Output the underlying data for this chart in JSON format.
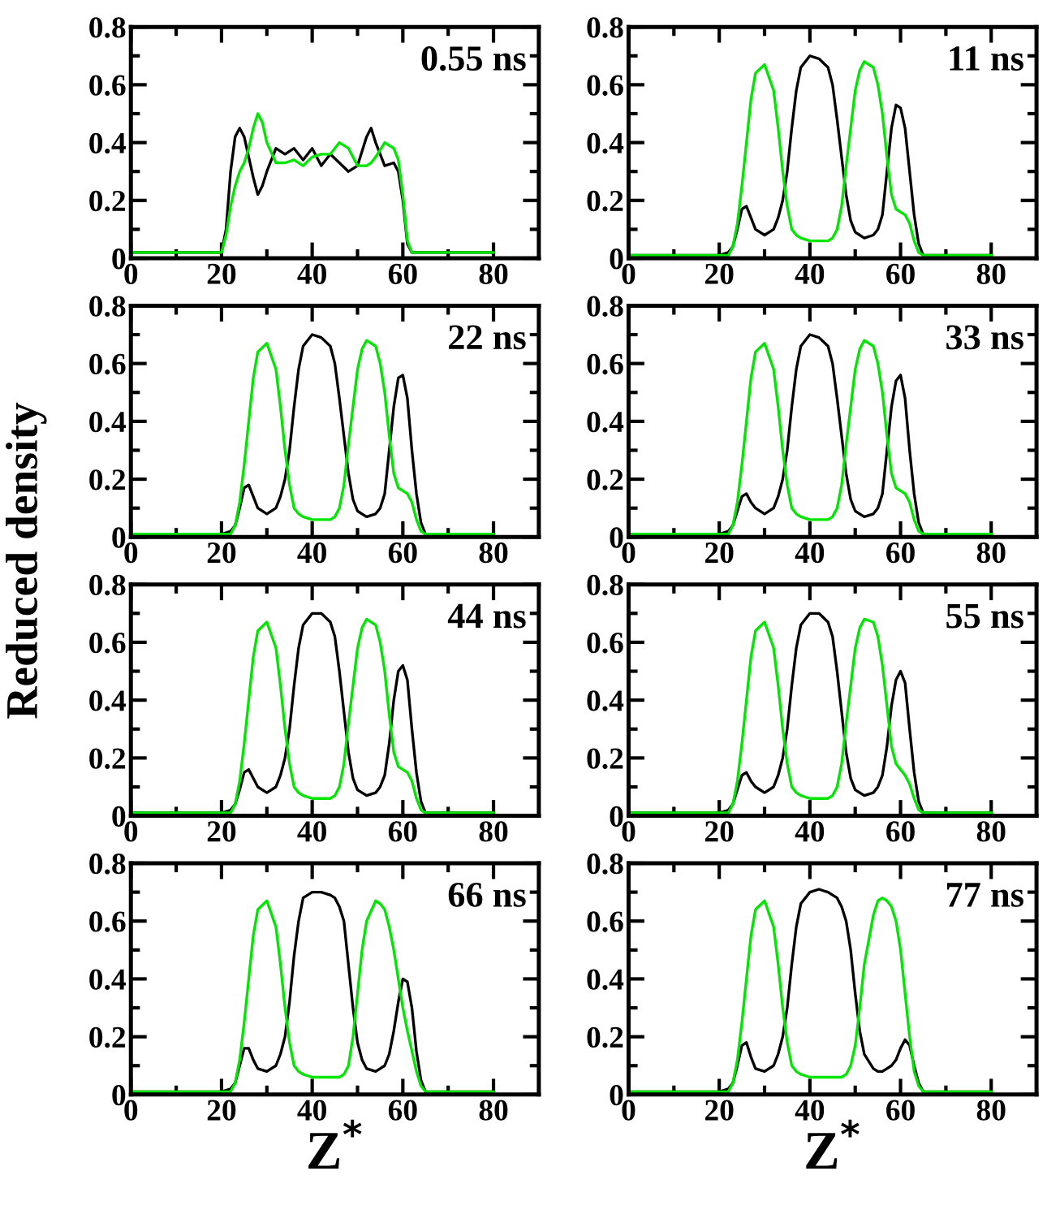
{
  "chart_data": [
    {
      "type": "line",
      "annotations": [
        "0.55 ns"
      ],
      "xlim": [
        0,
        90
      ],
      "xticks": [
        0,
        {
          "value": 10,
          "label": null
        },
        20,
        {
          "value": 30,
          "label": null
        },
        40,
        {
          "value": 50,
          "label": null
        },
        60,
        {
          "value": 70,
          "label": null
        },
        80
      ],
      "ylim": [
        0,
        0.8
      ],
      "yticks": [
        0,
        {
          "value": 0.1,
          "label": null
        },
        0.2,
        {
          "value": 0.3,
          "label": null
        },
        0.4,
        {
          "value": 0.5,
          "label": null
        },
        0.6,
        {
          "value": 0.7,
          "label": null
        },
        0.8
      ],
      "grid": false,
      "x": [
        0,
        10,
        20,
        21,
        22,
        23,
        24,
        25,
        26,
        27,
        28,
        29,
        30,
        32,
        34,
        36,
        38,
        40,
        42,
        44,
        46,
        48,
        50,
        52,
        53,
        54,
        56,
        58,
        59,
        60,
        61,
        62,
        70,
        80
      ],
      "series": [
        {
          "color": "#000000",
          "values": [
            0.02,
            0.02,
            0.02,
            0.1,
            0.3,
            0.42,
            0.45,
            0.42,
            0.35,
            0.28,
            0.22,
            0.25,
            0.3,
            0.38,
            0.36,
            0.38,
            0.34,
            0.38,
            0.32,
            0.36,
            0.33,
            0.3,
            0.32,
            0.42,
            0.45,
            0.4,
            0.32,
            0.33,
            0.3,
            0.2,
            0.05,
            0.02,
            0.02,
            0.02
          ]
        },
        {
          "color": "#00e600",
          "values": [
            0.02,
            0.02,
            0.02,
            0.08,
            0.18,
            0.25,
            0.3,
            0.33,
            0.38,
            0.45,
            0.5,
            0.47,
            0.4,
            0.33,
            0.33,
            0.34,
            0.32,
            0.35,
            0.36,
            0.36,
            0.4,
            0.38,
            0.32,
            0.32,
            0.33,
            0.35,
            0.4,
            0.38,
            0.34,
            0.22,
            0.06,
            0.02,
            0.02,
            0.02
          ]
        }
      ]
    },
    {
      "type": "line",
      "annotations": [
        "11 ns"
      ],
      "xlim": [
        0,
        90
      ],
      "xticks": [
        0,
        {
          "value": 10,
          "label": null
        },
        20,
        {
          "value": 30,
          "label": null
        },
        40,
        {
          "value": 50,
          "label": null
        },
        60,
        {
          "value": 70,
          "label": null
        },
        80
      ],
      "ylim": [
        0,
        0.8
      ],
      "yticks": [
        0,
        {
          "value": 0.1,
          "label": null
        },
        0.2,
        {
          "value": 0.3,
          "label": null
        },
        0.4,
        {
          "value": 0.5,
          "label": null
        },
        0.6,
        {
          "value": 0.7,
          "label": null
        },
        0.8
      ],
      "grid": false,
      "x": [
        0,
        10,
        20,
        22,
        23,
        24,
        25,
        26,
        27,
        28,
        30,
        32,
        33,
        34,
        35,
        36,
        37,
        38,
        40,
        42,
        44,
        45,
        46,
        47,
        48,
        49,
        50,
        51,
        52,
        54,
        55,
        56,
        57,
        58,
        59,
        60,
        61,
        62,
        63,
        64,
        65,
        70,
        80
      ],
      "series": [
        {
          "color": "#000000",
          "values": [
            0.01,
            0.01,
            0.01,
            0.02,
            0.04,
            0.1,
            0.17,
            0.18,
            0.14,
            0.1,
            0.08,
            0.1,
            0.14,
            0.2,
            0.3,
            0.45,
            0.58,
            0.66,
            0.7,
            0.69,
            0.66,
            0.6,
            0.48,
            0.35,
            0.22,
            0.13,
            0.09,
            0.08,
            0.07,
            0.08,
            0.1,
            0.15,
            0.3,
            0.45,
            0.53,
            0.52,
            0.45,
            0.3,
            0.15,
            0.05,
            0.01,
            0.01,
            0.01
          ]
        },
        {
          "color": "#00e600",
          "values": [
            0.01,
            0.01,
            0.01,
            0.01,
            0.04,
            0.12,
            0.25,
            0.4,
            0.55,
            0.64,
            0.67,
            0.58,
            0.45,
            0.3,
            0.18,
            0.1,
            0.08,
            0.07,
            0.06,
            0.06,
            0.06,
            0.07,
            0.1,
            0.18,
            0.32,
            0.45,
            0.58,
            0.65,
            0.68,
            0.66,
            0.6,
            0.5,
            0.35,
            0.22,
            0.17,
            0.16,
            0.15,
            0.12,
            0.06,
            0.02,
            0.01,
            0.01,
            0.01
          ]
        }
      ]
    },
    {
      "type": "line",
      "annotations": [
        "22 ns"
      ],
      "ylabel": "Reduced density",
      "xlim": [
        0,
        90
      ],
      "xticks": [
        0,
        {
          "value": 10,
          "label": null
        },
        20,
        {
          "value": 30,
          "label": null
        },
        40,
        {
          "value": 50,
          "label": null
        },
        60,
        {
          "value": 70,
          "label": null
        },
        80
      ],
      "ylim": [
        0,
        0.8
      ],
      "yticks": [
        0,
        {
          "value": 0.1,
          "label": null
        },
        0.2,
        {
          "value": 0.3,
          "label": null
        },
        0.4,
        {
          "value": 0.5,
          "label": null
        },
        0.6,
        {
          "value": 0.7,
          "label": null
        },
        0.8
      ],
      "grid": false,
      "x": [
        0,
        10,
        20,
        22,
        23,
        24,
        25,
        26,
        27,
        28,
        30,
        32,
        33,
        34,
        35,
        36,
        37,
        38,
        40,
        42,
        44,
        45,
        46,
        47,
        48,
        49,
        50,
        51,
        52,
        54,
        55,
        56,
        57,
        58,
        59,
        60,
        61,
        62,
        63,
        64,
        65,
        70,
        80
      ],
      "series": [
        {
          "color": "#000000",
          "values": [
            0.01,
            0.01,
            0.01,
            0.02,
            0.04,
            0.1,
            0.17,
            0.18,
            0.14,
            0.1,
            0.08,
            0.1,
            0.14,
            0.2,
            0.3,
            0.45,
            0.58,
            0.66,
            0.7,
            0.69,
            0.66,
            0.6,
            0.48,
            0.35,
            0.22,
            0.13,
            0.09,
            0.08,
            0.07,
            0.08,
            0.1,
            0.15,
            0.3,
            0.45,
            0.55,
            0.56,
            0.48,
            0.3,
            0.15,
            0.05,
            0.01,
            0.01,
            0.01
          ]
        },
        {
          "color": "#00e600",
          "values": [
            0.01,
            0.01,
            0.01,
            0.01,
            0.04,
            0.12,
            0.25,
            0.4,
            0.55,
            0.64,
            0.67,
            0.58,
            0.45,
            0.3,
            0.18,
            0.1,
            0.08,
            0.07,
            0.06,
            0.06,
            0.06,
            0.07,
            0.1,
            0.18,
            0.32,
            0.45,
            0.58,
            0.65,
            0.68,
            0.66,
            0.6,
            0.5,
            0.35,
            0.22,
            0.17,
            0.16,
            0.15,
            0.12,
            0.06,
            0.02,
            0.01,
            0.01,
            0.01
          ]
        }
      ]
    },
    {
      "type": "line",
      "annotations": [
        "33 ns"
      ],
      "xlim": [
        0,
        90
      ],
      "xticks": [
        0,
        {
          "value": 10,
          "label": null
        },
        20,
        {
          "value": 30,
          "label": null
        },
        40,
        {
          "value": 50,
          "label": null
        },
        60,
        {
          "value": 70,
          "label": null
        },
        80
      ],
      "ylim": [
        0,
        0.8
      ],
      "yticks": [
        0,
        {
          "value": 0.1,
          "label": null
        },
        0.2,
        {
          "value": 0.3,
          "label": null
        },
        0.4,
        {
          "value": 0.5,
          "label": null
        },
        0.6,
        {
          "value": 0.7,
          "label": null
        },
        0.8
      ],
      "grid": false,
      "x": [
        0,
        10,
        20,
        22,
        23,
        24,
        25,
        26,
        27,
        28,
        30,
        32,
        33,
        34,
        35,
        36,
        37,
        38,
        40,
        42,
        44,
        45,
        46,
        47,
        48,
        49,
        50,
        51,
        52,
        54,
        55,
        56,
        57,
        58,
        59,
        60,
        61,
        62,
        63,
        64,
        65,
        70,
        80
      ],
      "series": [
        {
          "color": "#000000",
          "values": [
            0.01,
            0.01,
            0.01,
            0.02,
            0.04,
            0.09,
            0.14,
            0.15,
            0.12,
            0.1,
            0.08,
            0.1,
            0.14,
            0.2,
            0.3,
            0.45,
            0.58,
            0.66,
            0.7,
            0.69,
            0.66,
            0.6,
            0.48,
            0.35,
            0.22,
            0.13,
            0.09,
            0.08,
            0.07,
            0.08,
            0.1,
            0.15,
            0.3,
            0.45,
            0.54,
            0.56,
            0.48,
            0.3,
            0.15,
            0.05,
            0.01,
            0.01,
            0.01
          ]
        },
        {
          "color": "#00e600",
          "values": [
            0.01,
            0.01,
            0.01,
            0.01,
            0.04,
            0.12,
            0.25,
            0.4,
            0.55,
            0.64,
            0.67,
            0.58,
            0.45,
            0.3,
            0.18,
            0.1,
            0.08,
            0.07,
            0.06,
            0.06,
            0.06,
            0.07,
            0.1,
            0.18,
            0.32,
            0.45,
            0.58,
            0.65,
            0.68,
            0.66,
            0.6,
            0.5,
            0.35,
            0.22,
            0.17,
            0.16,
            0.15,
            0.12,
            0.06,
            0.02,
            0.01,
            0.01,
            0.01
          ]
        }
      ]
    },
    {
      "type": "line",
      "annotations": [
        "44 ns"
      ],
      "xlim": [
        0,
        90
      ],
      "xticks": [
        0,
        {
          "value": 10,
          "label": null
        },
        20,
        {
          "value": 30,
          "label": null
        },
        40,
        {
          "value": 50,
          "label": null
        },
        60,
        {
          "value": 70,
          "label": null
        },
        80
      ],
      "ylim": [
        0,
        0.8
      ],
      "yticks": [
        0,
        {
          "value": 0.1,
          "label": null
        },
        0.2,
        {
          "value": 0.3,
          "label": null
        },
        0.4,
        {
          "value": 0.5,
          "label": null
        },
        0.6,
        {
          "value": 0.7,
          "label": null
        },
        0.8
      ],
      "grid": false,
      "x": [
        0,
        10,
        20,
        22,
        23,
        24,
        25,
        26,
        27,
        28,
        30,
        32,
        33,
        34,
        35,
        36,
        37,
        38,
        40,
        42,
        44,
        45,
        46,
        47,
        48,
        49,
        50,
        51,
        52,
        54,
        55,
        56,
        57,
        58,
        59,
        60,
        61,
        62,
        63,
        64,
        65,
        70,
        80
      ],
      "series": [
        {
          "color": "#000000",
          "values": [
            0.01,
            0.01,
            0.01,
            0.02,
            0.04,
            0.09,
            0.15,
            0.16,
            0.13,
            0.1,
            0.08,
            0.1,
            0.14,
            0.2,
            0.3,
            0.45,
            0.58,
            0.66,
            0.7,
            0.7,
            0.67,
            0.62,
            0.5,
            0.36,
            0.22,
            0.13,
            0.09,
            0.08,
            0.07,
            0.08,
            0.1,
            0.14,
            0.25,
            0.4,
            0.5,
            0.52,
            0.47,
            0.3,
            0.15,
            0.05,
            0.01,
            0.01,
            0.01
          ]
        },
        {
          "color": "#00e600",
          "values": [
            0.01,
            0.01,
            0.01,
            0.01,
            0.04,
            0.12,
            0.25,
            0.4,
            0.55,
            0.64,
            0.67,
            0.58,
            0.45,
            0.3,
            0.18,
            0.1,
            0.08,
            0.07,
            0.06,
            0.06,
            0.06,
            0.07,
            0.1,
            0.18,
            0.32,
            0.45,
            0.58,
            0.65,
            0.68,
            0.66,
            0.6,
            0.5,
            0.35,
            0.22,
            0.17,
            0.16,
            0.15,
            0.12,
            0.06,
            0.02,
            0.01,
            0.01,
            0.01
          ]
        }
      ]
    },
    {
      "type": "line",
      "annotations": [
        "55 ns"
      ],
      "xlim": [
        0,
        90
      ],
      "xticks": [
        0,
        {
          "value": 10,
          "label": null
        },
        20,
        {
          "value": 30,
          "label": null
        },
        40,
        {
          "value": 50,
          "label": null
        },
        60,
        {
          "value": 70,
          "label": null
        },
        80
      ],
      "ylim": [
        0,
        0.8
      ],
      "yticks": [
        0,
        {
          "value": 0.1,
          "label": null
        },
        0.2,
        {
          "value": 0.3,
          "label": null
        },
        0.4,
        {
          "value": 0.5,
          "label": null
        },
        0.6,
        {
          "value": 0.7,
          "label": null
        },
        0.8
      ],
      "grid": false,
      "x": [
        0,
        10,
        20,
        22,
        23,
        24,
        25,
        26,
        27,
        28,
        30,
        32,
        33,
        34,
        35,
        36,
        37,
        38,
        40,
        42,
        44,
        45,
        46,
        47,
        48,
        49,
        50,
        51,
        52,
        54,
        55,
        56,
        57,
        58,
        59,
        60,
        61,
        62,
        63,
        64,
        65,
        70,
        80
      ],
      "series": [
        {
          "color": "#000000",
          "values": [
            0.01,
            0.01,
            0.01,
            0.02,
            0.04,
            0.09,
            0.14,
            0.15,
            0.12,
            0.1,
            0.08,
            0.1,
            0.14,
            0.2,
            0.3,
            0.45,
            0.58,
            0.66,
            0.7,
            0.7,
            0.67,
            0.62,
            0.5,
            0.36,
            0.22,
            0.13,
            0.09,
            0.08,
            0.07,
            0.08,
            0.1,
            0.14,
            0.24,
            0.38,
            0.47,
            0.5,
            0.46,
            0.3,
            0.15,
            0.05,
            0.01,
            0.01,
            0.01
          ]
        },
        {
          "color": "#00e600",
          "values": [
            0.01,
            0.01,
            0.01,
            0.01,
            0.04,
            0.12,
            0.25,
            0.4,
            0.55,
            0.64,
            0.67,
            0.58,
            0.45,
            0.3,
            0.18,
            0.1,
            0.08,
            0.07,
            0.06,
            0.06,
            0.06,
            0.07,
            0.1,
            0.18,
            0.32,
            0.45,
            0.58,
            0.65,
            0.68,
            0.67,
            0.62,
            0.52,
            0.38,
            0.24,
            0.18,
            0.16,
            0.14,
            0.11,
            0.06,
            0.02,
            0.01,
            0.01,
            0.01
          ]
        }
      ]
    },
    {
      "type": "line",
      "annotations": [
        "66 ns"
      ],
      "xlabel": "Z$^{*}$",
      "xlim": [
        0,
        90
      ],
      "xticks": [
        0,
        {
          "value": 10,
          "label": null
        },
        20,
        {
          "value": 30,
          "label": null
        },
        40,
        {
          "value": 50,
          "label": null
        },
        60,
        {
          "value": 70,
          "label": null
        },
        80
      ],
      "ylim": [
        0,
        0.8
      ],
      "yticks": [
        0,
        {
          "value": 0.1,
          "label": null
        },
        0.2,
        {
          "value": 0.3,
          "label": null
        },
        0.4,
        {
          "value": 0.5,
          "label": null
        },
        0.6,
        {
          "value": 0.7,
          "label": null
        },
        0.8
      ],
      "grid": false,
      "x": [
        0,
        10,
        20,
        22,
        23,
        24,
        25,
        26,
        27,
        28,
        30,
        32,
        33,
        34,
        35,
        36,
        37,
        38,
        40,
        42,
        44,
        45,
        46,
        47,
        48,
        49,
        50,
        51,
        52,
        54,
        55,
        56,
        57,
        58,
        59,
        60,
        61,
        62,
        63,
        64,
        65,
        70,
        80
      ],
      "series": [
        {
          "color": "#000000",
          "values": [
            0.01,
            0.01,
            0.01,
            0.02,
            0.04,
            0.1,
            0.16,
            0.16,
            0.12,
            0.09,
            0.08,
            0.1,
            0.14,
            0.2,
            0.32,
            0.48,
            0.6,
            0.68,
            0.7,
            0.7,
            0.69,
            0.68,
            0.65,
            0.6,
            0.45,
            0.3,
            0.18,
            0.12,
            0.09,
            0.08,
            0.09,
            0.1,
            0.14,
            0.22,
            0.32,
            0.4,
            0.39,
            0.3,
            0.15,
            0.05,
            0.01,
            0.01,
            0.01
          ]
        },
        {
          "color": "#00e600",
          "values": [
            0.01,
            0.01,
            0.01,
            0.01,
            0.04,
            0.12,
            0.25,
            0.4,
            0.55,
            0.64,
            0.67,
            0.58,
            0.45,
            0.3,
            0.18,
            0.1,
            0.08,
            0.07,
            0.06,
            0.06,
            0.06,
            0.06,
            0.06,
            0.07,
            0.1,
            0.2,
            0.35,
            0.5,
            0.6,
            0.67,
            0.66,
            0.64,
            0.58,
            0.5,
            0.4,
            0.3,
            0.22,
            0.15,
            0.08,
            0.03,
            0.01,
            0.01,
            0.01
          ]
        }
      ]
    },
    {
      "type": "line",
      "annotations": [
        "77 ns"
      ],
      "xlabel": "Z$^{*}$",
      "xlim": [
        0,
        90
      ],
      "xticks": [
        0,
        {
          "value": 10,
          "label": null
        },
        20,
        {
          "value": 30,
          "label": null
        },
        40,
        {
          "value": 50,
          "label": null
        },
        60,
        {
          "value": 70,
          "label": null
        },
        80
      ],
      "ylim": [
        0,
        0.8
      ],
      "yticks": [
        0,
        {
          "value": 0.1,
          "label": null
        },
        0.2,
        {
          "value": 0.3,
          "label": null
        },
        0.4,
        {
          "value": 0.5,
          "label": null
        },
        0.6,
        {
          "value": 0.7,
          "label": null
        },
        0.8
      ],
      "grid": false,
      "x": [
        0,
        10,
        20,
        22,
        23,
        24,
        25,
        26,
        27,
        28,
        30,
        32,
        33,
        34,
        35,
        36,
        37,
        38,
        40,
        42,
        44,
        45,
        46,
        47,
        48,
        49,
        50,
        51,
        52,
        54,
        55,
        56,
        57,
        58,
        59,
        60,
        61,
        62,
        63,
        64,
        65,
        70,
        80
      ],
      "series": [
        {
          "color": "#000000",
          "values": [
            0.01,
            0.01,
            0.01,
            0.02,
            0.04,
            0.1,
            0.17,
            0.18,
            0.13,
            0.09,
            0.08,
            0.1,
            0.14,
            0.2,
            0.3,
            0.45,
            0.58,
            0.66,
            0.7,
            0.71,
            0.7,
            0.69,
            0.68,
            0.65,
            0.6,
            0.5,
            0.35,
            0.22,
            0.14,
            0.09,
            0.08,
            0.08,
            0.09,
            0.1,
            0.12,
            0.16,
            0.19,
            0.17,
            0.1,
            0.04,
            0.01,
            0.01,
            0.01
          ]
        },
        {
          "color": "#00e600",
          "values": [
            0.01,
            0.01,
            0.01,
            0.01,
            0.04,
            0.12,
            0.25,
            0.4,
            0.55,
            0.64,
            0.67,
            0.58,
            0.45,
            0.3,
            0.18,
            0.1,
            0.08,
            0.07,
            0.06,
            0.06,
            0.06,
            0.06,
            0.06,
            0.06,
            0.07,
            0.1,
            0.17,
            0.3,
            0.45,
            0.62,
            0.67,
            0.68,
            0.67,
            0.65,
            0.6,
            0.5,
            0.35,
            0.2,
            0.08,
            0.03,
            0.01,
            0.01,
            0.01
          ]
        }
      ]
    }
  ]
}
